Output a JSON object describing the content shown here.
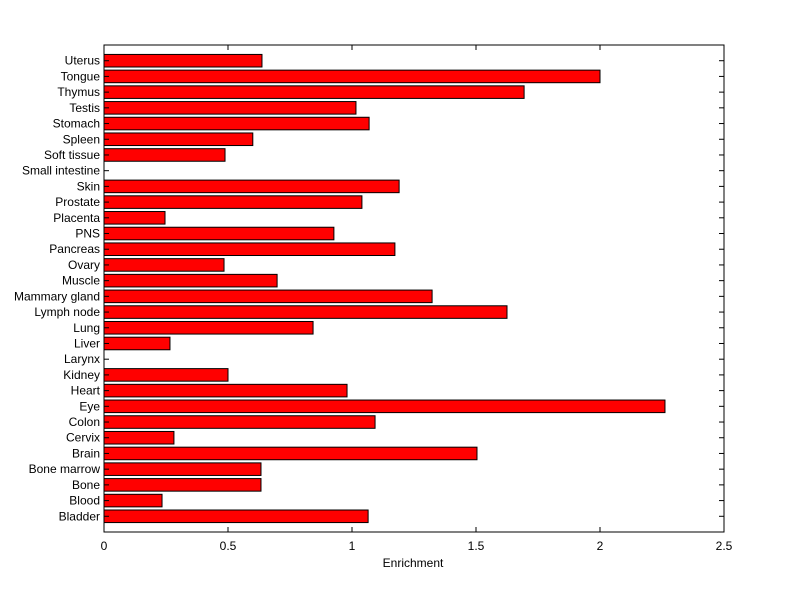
{
  "chart_data": {
    "type": "bar",
    "orientation": "horizontal",
    "title": "",
    "xlabel": "Enrichment",
    "ylabel": "",
    "xlim": [
      0,
      2.5
    ],
    "xticks": [
      "0",
      "0.5",
      "1",
      "1.5",
      "2",
      "2.5"
    ],
    "grid": false,
    "bar_color": "#ff0000",
    "categories": [
      "Bladder",
      "Blood",
      "Bone",
      "Bone marrow",
      "Brain",
      "Cervix",
      "Colon",
      "Eye",
      "Heart",
      "Kidney",
      "Larynx",
      "Liver",
      "Lung",
      "Lymph node",
      "Mammary gland",
      "Muscle",
      "Ovary",
      "Pancreas",
      "PNS",
      "Placenta",
      "Prostate",
      "Skin",
      "Small intestine",
      "Soft tissue",
      "Spleen",
      "Stomach",
      "Testis",
      "Thymus",
      "Tongue",
      "Uterus"
    ],
    "values": [
      1.065,
      0.234,
      0.633,
      0.633,
      1.504,
      0.282,
      1.093,
      2.262,
      0.98,
      0.5,
      0,
      0.266,
      0.843,
      1.625,
      1.323,
      0.698,
      0.484,
      1.173,
      0.927,
      0.246,
      1.04,
      1.19,
      0,
      0.488,
      0.6,
      1.069,
      1.016,
      1.694,
      2.0,
      0.637
    ]
  }
}
